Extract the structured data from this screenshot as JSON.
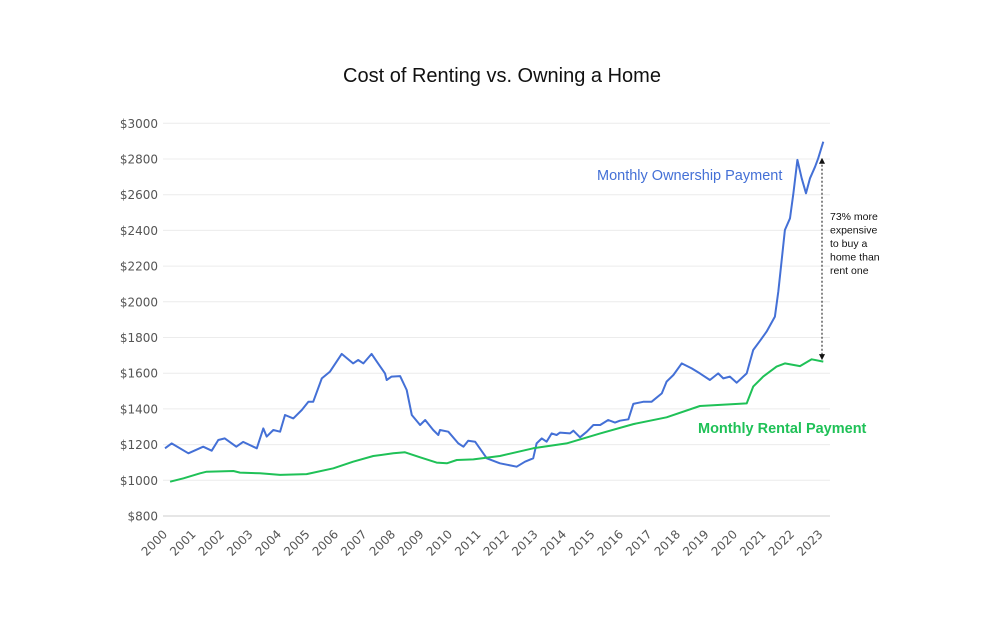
{
  "chart_data": {
    "type": "line",
    "title": "Cost of Renting vs. Owning a Home",
    "xlabel": "",
    "ylabel": "",
    "xlim": [
      2000,
      2023.3
    ],
    "ylim": [
      800,
      3000
    ],
    "grid": true,
    "x_ticks": [
      "2000",
      "2001",
      "2002",
      "2003",
      "2004",
      "2005",
      "2006",
      "2007",
      "2008",
      "2009",
      "2010",
      "2011",
      "2012",
      "2013",
      "2014",
      "2015",
      "2016",
      "2017",
      "2018",
      "2019",
      "2020",
      "2021",
      "2022",
      "2023"
    ],
    "y_ticks": [
      "$800",
      "$1000",
      "$1200",
      "$1400",
      "$1600",
      "$1800",
      "$2000",
      "$2200",
      "$2400",
      "$2600",
      "$2800",
      "$3000"
    ],
    "y_tick_values": [
      800,
      1000,
      1200,
      1400,
      1600,
      1800,
      2000,
      2200,
      2400,
      2600,
      2800,
      3000
    ],
    "series": [
      {
        "name": "Monthly Ownership Payment",
        "color": "#4470d6",
        "x": [
          2000.0,
          2000.23,
          2000.82,
          2001.34,
          2001.64,
          2001.87,
          2002.1,
          2002.5,
          2002.74,
          2003.22,
          2003.45,
          2003.57,
          2003.8,
          2004.04,
          2004.21,
          2004.5,
          2004.8,
          2005.03,
          2005.2,
          2005.5,
          2005.79,
          2006.2,
          2006.6,
          2006.78,
          2006.96,
          2007.25,
          2007.43,
          2007.72,
          2007.78,
          2007.95,
          2008.25,
          2008.48,
          2008.66,
          2008.95,
          2009.13,
          2009.41,
          2009.59,
          2009.65,
          2009.94,
          2010.29,
          2010.47,
          2010.64,
          2010.88,
          2011.29,
          2011.75,
          2012.34,
          2012.63,
          2012.92,
          2013.04,
          2013.22,
          2013.39,
          2013.57,
          2013.74,
          2013.86,
          2014.21,
          2014.33,
          2014.56,
          2014.8,
          2015.03,
          2015.27,
          2015.55,
          2015.79,
          2015.96,
          2016.26,
          2016.43,
          2016.78,
          2017.07,
          2017.43,
          2017.6,
          2017.84,
          2018.13,
          2018.48,
          2018.77,
          2019.12,
          2019.41,
          2019.59,
          2019.82,
          2020.06,
          2020.41,
          2020.64,
          2020.88,
          2021.11,
          2021.4,
          2021.52,
          2021.64,
          2021.75,
          2021.93,
          2022.05,
          2022.19,
          2022.34,
          2022.49,
          2022.63,
          2022.81,
          2022.92,
          2023.1
        ],
        "values": [
          1179,
          1207,
          1151,
          1188,
          1166,
          1226,
          1235,
          1188,
          1215,
          1179,
          1291,
          1245,
          1282,
          1272,
          1366,
          1347,
          1394,
          1440,
          1440,
          1571,
          1609,
          1708,
          1655,
          1674,
          1655,
          1708,
          1665,
          1599,
          1562,
          1581,
          1584,
          1506,
          1366,
          1310,
          1338,
          1282,
          1254,
          1282,
          1272,
          1207,
          1188,
          1222,
          1216,
          1123,
          1095,
          1076,
          1104,
          1123,
          1207,
          1235,
          1216,
          1263,
          1254,
          1267,
          1263,
          1278,
          1241,
          1272,
          1310,
          1310,
          1338,
          1323,
          1334,
          1342,
          1428,
          1440,
          1440,
          1487,
          1553,
          1590,
          1655,
          1627,
          1599,
          1562,
          1599,
          1571,
          1581,
          1547,
          1599,
          1730,
          1782,
          1833,
          1917,
          2057,
          2234,
          2402,
          2468,
          2608,
          2795,
          2692,
          2608,
          2692,
          2757,
          2804,
          2897
        ]
      },
      {
        "name": "Monthly Rental Payment",
        "color": "#1fc157",
        "x": [
          2000.18,
          2000.65,
          2001.23,
          2001.46,
          2002.4,
          2002.63,
          2003.33,
          2004.04,
          2004.97,
          2005.91,
          2006.6,
          2007.31,
          2008.01,
          2008.42,
          2008.95,
          2009.53,
          2009.89,
          2010.24,
          2010.82,
          2011.75,
          2012.92,
          2014.09,
          2015.27,
          2016.43,
          2017.6,
          2018.77,
          2019.94,
          2020.41,
          2020.64,
          2020.99,
          2021.46,
          2021.75,
          2022.28,
          2022.69,
          2023.1
        ],
        "values": [
          992,
          1011,
          1039,
          1048,
          1052,
          1043,
          1039,
          1030,
          1035,
          1067,
          1104,
          1136,
          1151,
          1157,
          1129,
          1099,
          1095,
          1114,
          1117,
          1136,
          1179,
          1207,
          1263,
          1315,
          1353,
          1416,
          1427,
          1431,
          1525,
          1581,
          1637,
          1655,
          1640,
          1678,
          1665
        ]
      }
    ],
    "annotation": {
      "lines": [
        "73% more",
        "expensive",
        "to buy a",
        "home than",
        "rent one"
      ],
      "arrow_from_value": 2790,
      "arrow_to_value": 1690
    }
  }
}
